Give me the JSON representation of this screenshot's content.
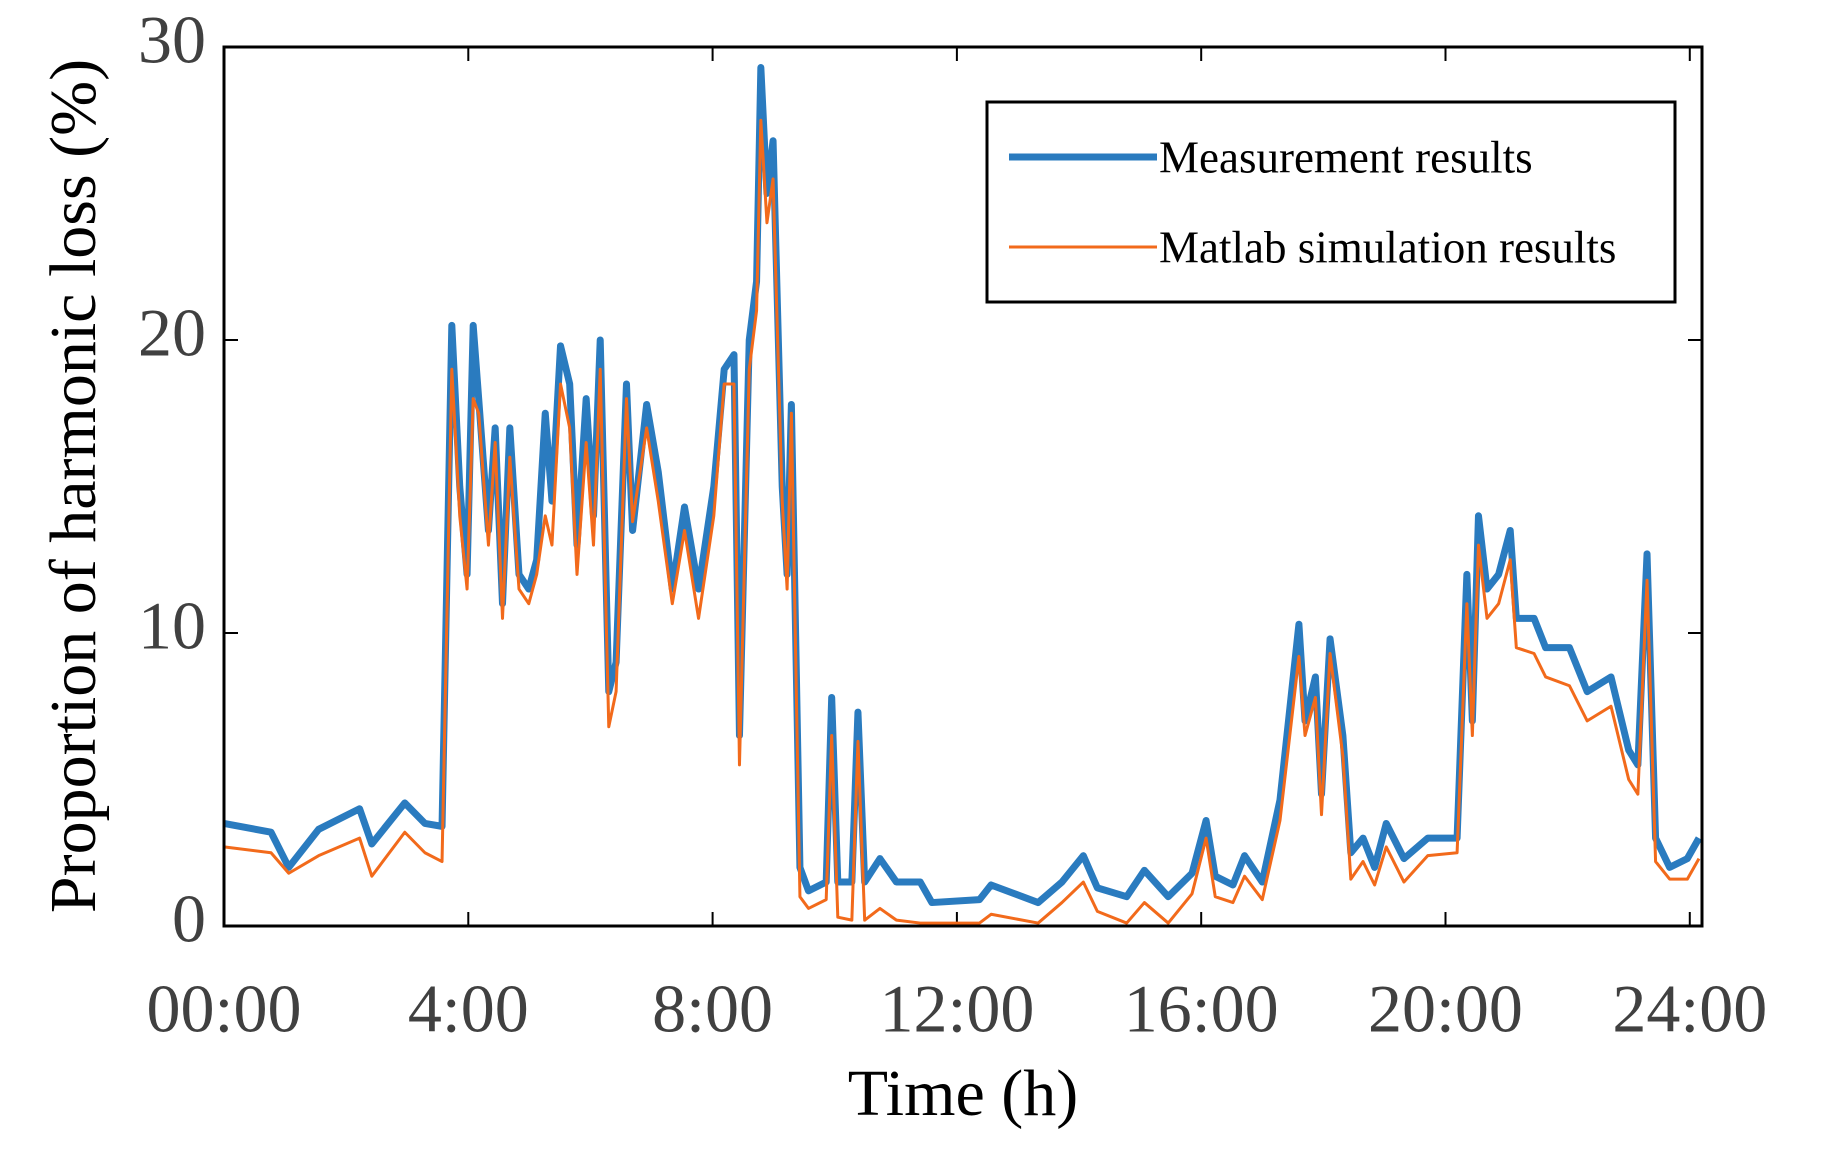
{
  "chart_data": {
    "type": "line",
    "xlabel": "Time (h)",
    "ylabel": "Proportion of harmonic loss (%)",
    "x": [
      0,
      0.77,
      1.06,
      1.55,
      2.22,
      2.42,
      2.96,
      3.29,
      3.57,
      3.73,
      3.86,
      3.98,
      4.08,
      4.17,
      4.33,
      4.44,
      4.56,
      4.68,
      4.83,
      4.99,
      5.12,
      5.26,
      5.37,
      5.51,
      5.66,
      5.78,
      5.93,
      6.05,
      6.16,
      6.3,
      6.42,
      6.59,
      6.69,
      6.92,
      7.11,
      7.34,
      7.54,
      7.77,
      8.02,
      8.19,
      8.35,
      8.44,
      8.6,
      8.72,
      8.79,
      8.89,
      8.99,
      9.14,
      9.22,
      9.29,
      9.43,
      9.57,
      9.86,
      9.95,
      10.05,
      10.28,
      10.38,
      10.49,
      10.74,
      11.01,
      11.4,
      11.59,
      12.37,
      12.56,
      13.33,
      13.72,
      14.07,
      14.3,
      14.78,
      15.07,
      15.46,
      15.85,
      16.08,
      16.23,
      16.52,
      16.71,
      17,
      17.29,
      17.6,
      17.7,
      17.87,
      17.97,
      18.11,
      18.32,
      18.45,
      18.65,
      18.84,
      19.03,
      19.32,
      19.71,
      20.19,
      20.35,
      20.44,
      20.54,
      20.68,
      20.87,
      21.06,
      21.16,
      21.45,
      21.64,
      22.03,
      22.32,
      22.71,
      23,
      23.15,
      23.3,
      23.44,
      23.67,
      23.96,
      24.15
    ],
    "series": [
      {
        "name": "Measurement results",
        "color": "#2a7bbf",
        "values": [
          3.5,
          3.2,
          2.0,
          3.3,
          4.0,
          2.8,
          4.2,
          3.5,
          3.4,
          20.5,
          15,
          12,
          20.5,
          18,
          13.5,
          17,
          11,
          17,
          12,
          11.5,
          12.5,
          17.5,
          14.5,
          19.8,
          18.5,
          13,
          18,
          14,
          20,
          8,
          9,
          18.5,
          13.5,
          17.8,
          15.5,
          11.5,
          14.3,
          11.5,
          15,
          19,
          19.5,
          6.5,
          20,
          22,
          29.3,
          25,
          26.8,
          15,
          12,
          17.8,
          2,
          1.2,
          1.5,
          7.8,
          1.5,
          1.5,
          7.3,
          1.5,
          2.3,
          1.5,
          1.5,
          0.8,
          0.9,
          1.4,
          0.8,
          1.5,
          2.4,
          1.3,
          1,
          1.9,
          1,
          1.8,
          3.6,
          1.7,
          1.4,
          2.4,
          1.5,
          4.3,
          10.3,
          7,
          8.5,
          4.5,
          9.8,
          6.5,
          2.5,
          3,
          2,
          3.5,
          2.3,
          3,
          3,
          12,
          7,
          14,
          11.5,
          12,
          13.5,
          10.5,
          10.5,
          9.5,
          9.5,
          8,
          8.5,
          6,
          5.5,
          12.7,
          3,
          2,
          2.3,
          3
        ]
      },
      {
        "name": "Matlab simulation results",
        "color": "#f26a1b",
        "values": [
          2.7,
          2.5,
          1.8,
          2.4,
          3.0,
          1.7,
          3.2,
          2.5,
          2.2,
          19,
          14,
          11.5,
          18,
          17.5,
          13,
          16.5,
          10.5,
          16,
          11.5,
          11,
          12,
          14,
          13,
          18.5,
          17,
          12,
          16.5,
          13,
          19,
          6.8,
          8,
          18,
          13.8,
          17,
          14.5,
          11,
          13.5,
          10.5,
          14,
          18.5,
          18.5,
          5.5,
          19,
          21,
          27.5,
          24,
          25.5,
          14.5,
          11.5,
          17.5,
          1,
          0.6,
          0.9,
          6.5,
          0.3,
          0.2,
          6.3,
          0.2,
          0.6,
          0.2,
          0.1,
          0.1,
          0.1,
          0.4,
          0.1,
          0.8,
          1.5,
          0.5,
          0.1,
          0.8,
          0.1,
          1.1,
          3,
          1,
          0.8,
          1.7,
          0.9,
          3.6,
          9.2,
          6.5,
          7.8,
          3.8,
          9.3,
          5.8,
          1.6,
          2.2,
          1.4,
          2.7,
          1.5,
          2.4,
          2.5,
          11,
          6.5,
          13,
          10.5,
          11,
          12.5,
          9.5,
          9.3,
          8.5,
          8.2,
          7,
          7.5,
          5,
          4.5,
          11.8,
          2.2,
          1.6,
          1.6,
          2.3
        ]
      }
    ],
    "xlim": [
      0,
      24.2
    ],
    "xticks": [
      {
        "value": 0,
        "label": "00:00"
      },
      {
        "value": 4,
        "label": "4:00"
      },
      {
        "value": 8,
        "label": "8:00"
      },
      {
        "value": 12,
        "label": "12:00"
      },
      {
        "value": 16,
        "label": "16:00"
      },
      {
        "value": 20,
        "label": "20:00"
      },
      {
        "value": 24,
        "label": "24:00"
      }
    ],
    "ylim": [
      0,
      30
    ],
    "yticks": [
      0,
      10,
      20,
      30
    ],
    "legend": "upper right",
    "grid": false
  }
}
